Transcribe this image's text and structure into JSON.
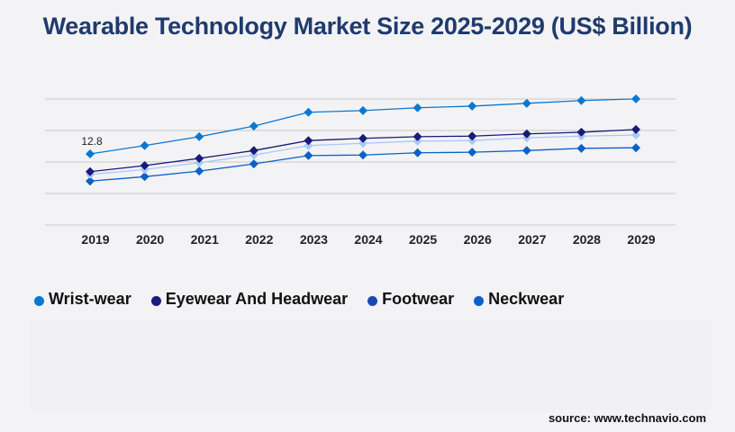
{
  "chart_data": {
    "type": "line",
    "title": "Wearable Technology Market Size 2025-2029 (US$ Billion)",
    "xlabel": "",
    "ylabel": "",
    "categories": [
      "2019",
      "2020",
      "2021",
      "2022",
      "2023",
      "2024",
      "2025",
      "2026",
      "2027",
      "2028",
      "2029"
    ],
    "ylim": [
      0,
      22.7
    ],
    "grid": true,
    "legend_placement": "bottom-left",
    "series": [
      {
        "name": "Wrist-wear",
        "color": "#0a78d2",
        "legend_color": "#0a78d2",
        "values": [
          12.8,
          14.3,
          15.9,
          17.8,
          20.3,
          20.6,
          21.1,
          21.4,
          21.9,
          22.4,
          22.7
        ]
      },
      {
        "name": "Eyewear And Headwear",
        "color": "#1a1a78",
        "legend_color": "#1a1a78",
        "values": [
          9.6,
          10.7,
          12.0,
          13.4,
          15.2,
          15.6,
          15.9,
          16.0,
          16.4,
          16.7,
          17.2
        ]
      },
      {
        "name": "Footwear",
        "color": "#a9c8f5",
        "legend_color": "#1a48b0",
        "values": [
          9.1,
          10.0,
          11.2,
          12.6,
          14.3,
          14.7,
          15.1,
          15.2,
          15.7,
          16.0,
          16.2
        ]
      },
      {
        "name": "Neckwear",
        "color": "#0a62c8",
        "legend_color": "#0a62c8",
        "values": [
          7.9,
          8.7,
          9.7,
          11.0,
          12.5,
          12.6,
          13.0,
          13.1,
          13.4,
          13.8,
          13.9
        ]
      }
    ],
    "annotations": [
      {
        "series": "Wrist-wear",
        "category": "2019",
        "text": "12.8"
      }
    ]
  },
  "source": "source: www.technavio.com"
}
